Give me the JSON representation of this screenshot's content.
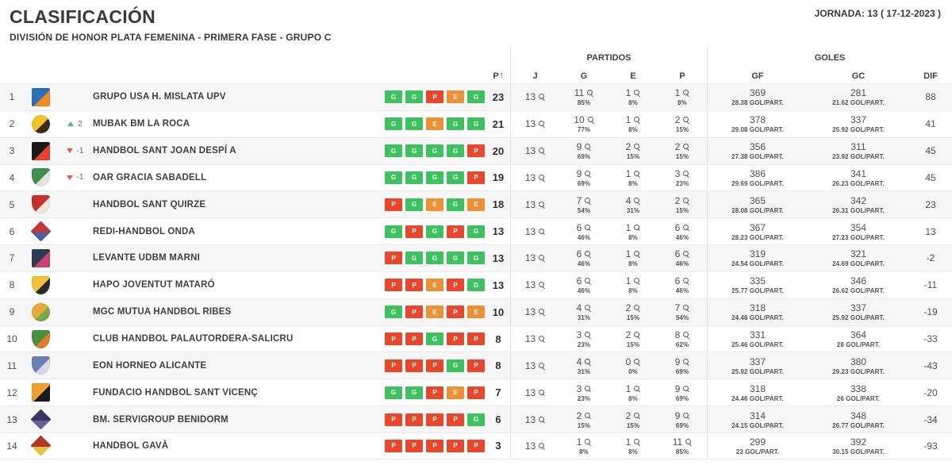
{
  "header": {
    "title": "CLASIFICACIÓN",
    "subtitle": "DIVISIÓN DE HONOR PLATA FEMENINA - PRIMERA FASE - GRUPO C",
    "jornada": "JORNADA: 13 ( 17-12-2023 )"
  },
  "table": {
    "group_headers": {
      "partidos": "PARTIDOS",
      "goles": "GOLES"
    },
    "columns": {
      "pt": "P",
      "pt_sup": "T",
      "j": "J",
      "g": "G",
      "e": "E",
      "p": "P",
      "gf": "GF",
      "gc": "GC",
      "dif": "DIF"
    },
    "form_colors": {
      "G": "#3dc25f",
      "E": "#ee9036",
      "P": "#e8472c"
    },
    "movement_colors": {
      "up": "#47b97a",
      "down": "#e05c49"
    },
    "icons": {
      "stat_zoom": "magnifier-icon"
    },
    "rows": [
      {
        "pos": 1,
        "team": "GRUPO USA H. MISLATA UPV",
        "movement": null,
        "logo": {
          "shape": "square",
          "c1": "#2b6fb5",
          "c2": "#f08a24"
        },
        "form": [
          "G",
          "G",
          "P",
          "E",
          "G"
        ],
        "pt": 23,
        "j": 13,
        "g": {
          "v": 11,
          "pct": "85%"
        },
        "e": {
          "v": 1,
          "pct": "8%"
        },
        "p": {
          "v": 1,
          "pct": "8%"
        },
        "gf": {
          "v": 369,
          "per": "28.38 GOL/PART."
        },
        "gc": {
          "v": 281,
          "per": "21.62 GOL/PART."
        },
        "dif": 88
      },
      {
        "pos": 2,
        "team": "MUBAK BM LA ROCA",
        "movement": {
          "dir": "up",
          "label": "2"
        },
        "logo": {
          "shape": "circle",
          "c1": "#f2c428",
          "c2": "#3a2a18"
        },
        "form": [
          "G",
          "G",
          "E",
          "G",
          "G"
        ],
        "pt": 21,
        "j": 13,
        "g": {
          "v": 10,
          "pct": "77%"
        },
        "e": {
          "v": 1,
          "pct": "8%"
        },
        "p": {
          "v": 2,
          "pct": "15%"
        },
        "gf": {
          "v": 378,
          "per": "29.08 GOL/PART."
        },
        "gc": {
          "v": 337,
          "per": "25.92 GOL/PART."
        },
        "dif": 41
      },
      {
        "pos": 3,
        "team": "HANDBOL SANT JOAN DESPÍ A",
        "movement": {
          "dir": "down",
          "label": "-1"
        },
        "logo": {
          "shape": "square",
          "c1": "#1a1a1a",
          "c2": "#e8402a"
        },
        "form": [
          "G",
          "G",
          "G",
          "G",
          "P"
        ],
        "pt": 20,
        "j": 13,
        "g": {
          "v": 9,
          "pct": "69%"
        },
        "e": {
          "v": 2,
          "pct": "15%"
        },
        "p": {
          "v": 2,
          "pct": "15%"
        },
        "gf": {
          "v": 356,
          "per": "27.38 GOL/PART."
        },
        "gc": {
          "v": 311,
          "per": "23.92 GOL/PART."
        },
        "dif": 45
      },
      {
        "pos": 4,
        "team": "OAR GRACIA SABADELL",
        "movement": {
          "dir": "down",
          "label": "-1"
        },
        "logo": {
          "shape": "shield",
          "c1": "#3f8f4e",
          "c2": "#e4e4e4"
        },
        "form": [
          "G",
          "G",
          "G",
          "G",
          "P"
        ],
        "pt": 19,
        "j": 13,
        "g": {
          "v": 9,
          "pct": "69%"
        },
        "e": {
          "v": 1,
          "pct": "8%"
        },
        "p": {
          "v": 3,
          "pct": "23%"
        },
        "gf": {
          "v": 386,
          "per": "29.69 GOL/PART."
        },
        "gc": {
          "v": 341,
          "per": "26.23 GOL/PART."
        },
        "dif": 45
      },
      {
        "pos": 5,
        "team": "HANDBOL SANT QUIRZE",
        "movement": null,
        "logo": {
          "shape": "shield",
          "c1": "#c6332b",
          "c2": "#f2e7d6"
        },
        "form": [
          "P",
          "G",
          "E",
          "G",
          "E"
        ],
        "pt": 18,
        "j": 13,
        "g": {
          "v": 7,
          "pct": "54%"
        },
        "e": {
          "v": 4,
          "pct": "31%"
        },
        "p": {
          "v": 2,
          "pct": "15%"
        },
        "gf": {
          "v": 365,
          "per": "28.08 GOL/PART."
        },
        "gc": {
          "v": 342,
          "per": "26.31 GOL/PART."
        },
        "dif": 23
      },
      {
        "pos": 6,
        "team": "REDI-HANDBOL ONDA",
        "movement": null,
        "logo": {
          "shape": "diamond",
          "c1": "#c03a34",
          "c2": "#4a5fa5"
        },
        "form": [
          "G",
          "P",
          "G",
          "P",
          "G"
        ],
        "pt": 13,
        "j": 13,
        "g": {
          "v": 6,
          "pct": "46%"
        },
        "e": {
          "v": 1,
          "pct": "8%"
        },
        "p": {
          "v": 6,
          "pct": "46%"
        },
        "gf": {
          "v": 367,
          "per": "28.23 GOL/PART."
        },
        "gc": {
          "v": 354,
          "per": "27.23 GOL/PART."
        },
        "dif": 13
      },
      {
        "pos": 7,
        "team": "LEVANTE UDBM MARNI",
        "movement": null,
        "logo": {
          "shape": "square",
          "c1": "#2c3a52",
          "c2": "#c94373"
        },
        "form": [
          "P",
          "G",
          "G",
          "G",
          "G"
        ],
        "pt": 13,
        "j": 13,
        "g": {
          "v": 6,
          "pct": "46%"
        },
        "e": {
          "v": 1,
          "pct": "8%"
        },
        "p": {
          "v": 6,
          "pct": "46%"
        },
        "gf": {
          "v": 319,
          "per": "24.54 GOL/PART."
        },
        "gc": {
          "v": 321,
          "per": "24.69 GOL/PART."
        },
        "dif": -2
      },
      {
        "pos": 8,
        "team": "HAPO JOVENTUT MATARÓ",
        "movement": null,
        "logo": {
          "shape": "shield",
          "c1": "#f0c53a",
          "c2": "#2a2a2a"
        },
        "form": [
          "P",
          "P",
          "E",
          "P",
          "G"
        ],
        "pt": 13,
        "j": 13,
        "g": {
          "v": 6,
          "pct": "46%"
        },
        "e": {
          "v": 1,
          "pct": "8%"
        },
        "p": {
          "v": 6,
          "pct": "46%"
        },
        "gf": {
          "v": 335,
          "per": "25.77 GOL/PART."
        },
        "gc": {
          "v": 346,
          "per": "26.62 GOL/PART."
        },
        "dif": -11
      },
      {
        "pos": 9,
        "team": "MGC MUTUA HANDBOL RIBES",
        "movement": null,
        "logo": {
          "shape": "circle",
          "c1": "#e9a93c",
          "c2": "#7ba94a"
        },
        "form": [
          "G",
          "P",
          "E",
          "P",
          "E"
        ],
        "pt": 10,
        "j": 13,
        "g": {
          "v": 4,
          "pct": "31%"
        },
        "e": {
          "v": 2,
          "pct": "15%"
        },
        "p": {
          "v": 7,
          "pct": "54%"
        },
        "gf": {
          "v": 318,
          "per": "24.46 GOL/PART."
        },
        "gc": {
          "v": 337,
          "per": "25.92 GOL/PART."
        },
        "dif": -19
      },
      {
        "pos": 10,
        "team": "CLUB HANDBOL PALAUTORDERA-SALICRU",
        "movement": null,
        "logo": {
          "shape": "shield",
          "c1": "#4a8f3f",
          "c2": "#e07b2f"
        },
        "form": [
          "P",
          "P",
          "G",
          "P",
          "P"
        ],
        "pt": 8,
        "j": 13,
        "g": {
          "v": 3,
          "pct": "23%"
        },
        "e": {
          "v": 2,
          "pct": "15%"
        },
        "p": {
          "v": 8,
          "pct": "62%"
        },
        "gf": {
          "v": 331,
          "per": "25.46 GOL/PART."
        },
        "gc": {
          "v": 364,
          "per": "28 GOL/PART."
        },
        "dif": -33
      },
      {
        "pos": 11,
        "team": "EON HORNEO ALICANTE",
        "movement": null,
        "logo": {
          "shape": "shield",
          "c1": "#6a7fb5",
          "c2": "#d8d8e8"
        },
        "form": [
          "P",
          "P",
          "P",
          "G",
          "P"
        ],
        "pt": 8,
        "j": 13,
        "g": {
          "v": 4,
          "pct": "31%"
        },
        "e": {
          "v": 0,
          "pct": "0%"
        },
        "p": {
          "v": 9,
          "pct": "69%"
        },
        "gf": {
          "v": 337,
          "per": "25.92 GOL/PART."
        },
        "gc": {
          "v": 380,
          "per": "29.23 GOL/PART."
        },
        "dif": -43
      },
      {
        "pos": 12,
        "team": "FUNDACIO HANDBOL SANT VICENÇ",
        "movement": null,
        "logo": {
          "shape": "square",
          "c1": "#f0a02f",
          "c2": "#1a1a1a"
        },
        "form": [
          "G",
          "G",
          "P",
          "E",
          "P"
        ],
        "pt": 7,
        "j": 13,
        "g": {
          "v": 3,
          "pct": "23%"
        },
        "e": {
          "v": 1,
          "pct": "8%"
        },
        "p": {
          "v": 9,
          "pct": "69%"
        },
        "gf": {
          "v": 318,
          "per": "24.46 GOL/PART."
        },
        "gc": {
          "v": 338,
          "per": "26 GOL/PART."
        },
        "dif": -20
      },
      {
        "pos": 13,
        "team": "BM. SERVIGROUP BENIDORM",
        "movement": null,
        "logo": {
          "shape": "diamond",
          "c1": "#3a3560",
          "c2": "#6a5f9a"
        },
        "form": [
          "P",
          "P",
          "P",
          "P",
          "G"
        ],
        "pt": 6,
        "j": 13,
        "g": {
          "v": 2,
          "pct": "15%"
        },
        "e": {
          "v": 2,
          "pct": "15%"
        },
        "p": {
          "v": 9,
          "pct": "69%"
        },
        "gf": {
          "v": 314,
          "per": "24.15 GOL/PART."
        },
        "gc": {
          "v": 348,
          "per": "26.77 GOL/PART."
        },
        "dif": -34
      },
      {
        "pos": 14,
        "team": "HANDBOL GAVÀ",
        "movement": null,
        "logo": {
          "shape": "diamond",
          "c1": "#b03a2a",
          "c2": "#e8c23a"
        },
        "form": [
          "P",
          "P",
          "P",
          "P",
          "P"
        ],
        "pt": 3,
        "j": 13,
        "g": {
          "v": 1,
          "pct": "8%"
        },
        "e": {
          "v": 1,
          "pct": "8%"
        },
        "p": {
          "v": 11,
          "pct": "85%"
        },
        "gf": {
          "v": 299,
          "per": "23 GOL/PART."
        },
        "gc": {
          "v": 392,
          "per": "30.15 GOL/PART."
        },
        "dif": -93
      }
    ]
  }
}
